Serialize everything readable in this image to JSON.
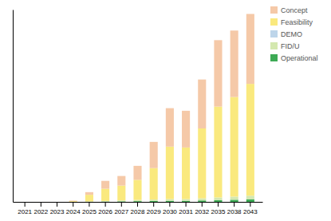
{
  "chart_data": {
    "type": "bar",
    "stacked": true,
    "categories": [
      "2021",
      "2022",
      "2023",
      "2024",
      "2025",
      "2026",
      "2027",
      "2028",
      "2029",
      "2030",
      "2031",
      "2032",
      "2035",
      "2038",
      "2043"
    ],
    "series": [
      {
        "name": "Operational",
        "color": "#3DAA55",
        "values": [
          0,
          0,
          0,
          0,
          0.1,
          0.2,
          0.3,
          0.4,
          0.5,
          0.6,
          0.6,
          0.8,
          1.0,
          1.2,
          1.5
        ]
      },
      {
        "name": "FID/U",
        "color": "#D4E8B0",
        "values": [
          0,
          0,
          0,
          0,
          0.15,
          0.3,
          0.5,
          0.7,
          0.8,
          1.0,
          1.0,
          1.2,
          1.5,
          1.8,
          2.0
        ]
      },
      {
        "name": "DEMO",
        "color": "#BDD5EA",
        "values": [
          0,
          0,
          0,
          0,
          0,
          0,
          0,
          0,
          0,
          0,
          0,
          0,
          0,
          0,
          0
        ]
      },
      {
        "name": "Feasibility",
        "color": "#FAE97E",
        "values": [
          0,
          0,
          0,
          0.4,
          3.8,
          7.0,
          8.5,
          11.5,
          18.0,
          30.0,
          29.5,
          40.0,
          52.0,
          57.0,
          64.0
        ]
      },
      {
        "name": "Concept",
        "color": "#F5C9A8",
        "values": [
          0,
          0,
          0,
          0.3,
          1.5,
          4.5,
          5.5,
          8.0,
          15.0,
          22.0,
          21.0,
          28.0,
          38.0,
          38.0,
          40.0
        ]
      }
    ],
    "ylim": [
      0,
      110
    ],
    "yticks": [],
    "tick_labels": "x",
    "grid": false,
    "legend": "upper right"
  }
}
